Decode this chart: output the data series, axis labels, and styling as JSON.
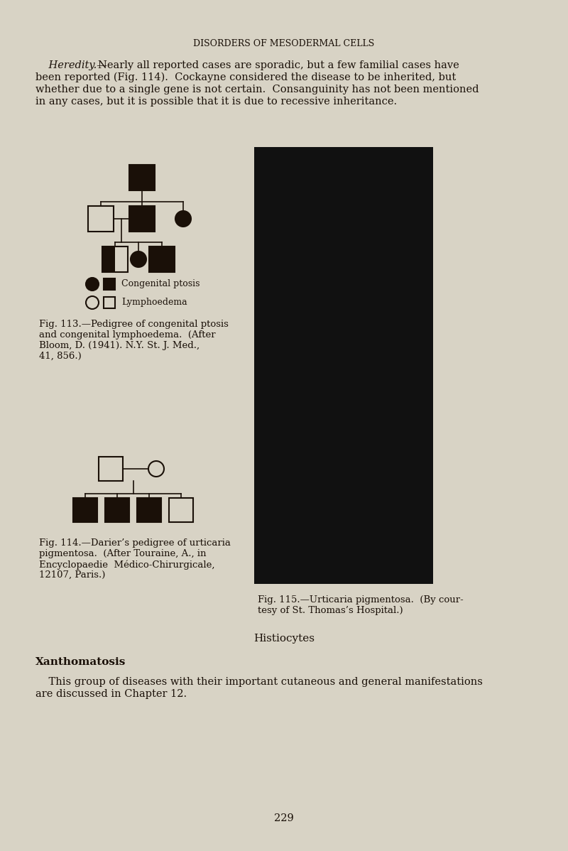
{
  "bg_color": "#d8d3c5",
  "page_title": "DISORDERS OF MESODERMAL CELLS",
  "page_title_fontsize": 9,
  "body_fontsize": 10.5,
  "fig113_caption_line1": "Fig. 113.—Pedigree of congenital ptosis",
  "fig113_caption_line2": "and congenital lymphoedema.  (After",
  "fig113_caption_line3": "Bloom, D. (1941). N.Y. St. J. Med.,",
  "fig113_caption_line4": "41, 856.)",
  "fig114_caption_line1": "Fig. 114.—Darier’s pedigree of urticaria",
  "fig114_caption_line2": "pigmentosa.  (After Touraine, A., in",
  "fig114_caption_line3": "Encyclopaedie  Médico-Chirurgicale,",
  "fig114_caption_line4": "12107, Paris.)",
  "fig115_caption_line1": "Fig. 115.—Urticaria pigmentosa.  (By cour­tesy of St. Thomas’s Hospital.)",
  "histiocytes_header": "Histiocytes",
  "xanthomatosis_header": "Xanthomatosis",
  "xanthomatosis_body_line1": "    This group of diseases with their important cutaneous and general manifestations",
  "xanthomatosis_body_line2": "are discussed in Chapter 12.",
  "page_number": "229",
  "text_color": "#1a1008",
  "photo_color": "#111111",
  "legend_congenital": "Congenital ptosis",
  "legend_lymph": "Lymphoedema"
}
